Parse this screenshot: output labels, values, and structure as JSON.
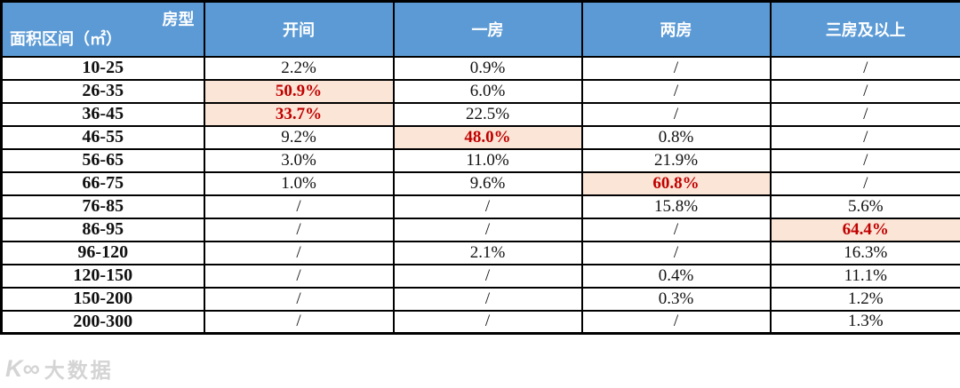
{
  "colors": {
    "header_bg": "#5b9ad5",
    "header_text": "#ffffff",
    "highlight_bg": "#fbe5d6",
    "highlight_text": "#c00000",
    "border": "#000000"
  },
  "table": {
    "corner": {
      "top_right": "房型",
      "bottom_left": "面积区间（㎡）"
    },
    "columns": [
      "开间",
      "一房",
      "两房",
      "三房及以上"
    ],
    "rows": [
      {
        "label": "10-25",
        "values": [
          "2.2%",
          "0.9%",
          "/",
          "/"
        ],
        "highlight": null
      },
      {
        "label": "26-35",
        "values": [
          "50.9%",
          "6.0%",
          "/",
          "/"
        ],
        "highlight": 0
      },
      {
        "label": "36-45",
        "values": [
          "33.7%",
          "22.5%",
          "/",
          "/"
        ],
        "highlight": 0
      },
      {
        "label": "46-55",
        "values": [
          "9.2%",
          "48.0%",
          "0.8%",
          "/"
        ],
        "highlight": 1
      },
      {
        "label": "56-65",
        "values": [
          "3.0%",
          "11.0%",
          "21.9%",
          "/"
        ],
        "highlight": null
      },
      {
        "label": "66-75",
        "values": [
          "1.0%",
          "9.6%",
          "60.8%",
          "/"
        ],
        "highlight": 2
      },
      {
        "label": "76-85",
        "values": [
          "/",
          "/",
          "15.8%",
          "5.6%"
        ],
        "highlight": null
      },
      {
        "label": "86-95",
        "values": [
          "/",
          "/",
          "/",
          "64.4%"
        ],
        "highlight": 3
      },
      {
        "label": "96-120",
        "values": [
          "/",
          "2.1%",
          "/",
          "16.3%"
        ],
        "highlight": null
      },
      {
        "label": "120-150",
        "values": [
          "/",
          "/",
          "0.4%",
          "11.1%"
        ],
        "highlight": null
      },
      {
        "label": "150-200",
        "values": [
          "/",
          "/",
          "0.3%",
          "1.2%"
        ],
        "highlight": null
      },
      {
        "label": "200-300",
        "values": [
          "/",
          "/",
          "/",
          "1.3%"
        ],
        "highlight": null
      }
    ]
  },
  "watermark": {
    "logo": "K∞",
    "text": "大数据"
  },
  "chart_data": {
    "type": "table",
    "title": "",
    "corner_header": {
      "top_right": "房型",
      "bottom_left": "面积区间（㎡）"
    },
    "columns": [
      "开间",
      "一房",
      "两房",
      "三房及以上"
    ],
    "row_labels": [
      "10-25",
      "26-35",
      "36-45",
      "46-55",
      "56-65",
      "66-75",
      "76-85",
      "86-95",
      "96-120",
      "120-150",
      "150-200",
      "200-300"
    ],
    "values_percent": [
      [
        2.2,
        0.9,
        null,
        null
      ],
      [
        50.9,
        6.0,
        null,
        null
      ],
      [
        33.7,
        22.5,
        null,
        null
      ],
      [
        9.2,
        48.0,
        0.8,
        null
      ],
      [
        3.0,
        11.0,
        21.9,
        null
      ],
      [
        1.0,
        9.6,
        60.8,
        null
      ],
      [
        null,
        null,
        15.8,
        5.6
      ],
      [
        null,
        null,
        null,
        64.4
      ],
      [
        null,
        2.1,
        null,
        16.3
      ],
      [
        null,
        null,
        0.4,
        11.1
      ],
      [
        null,
        null,
        0.3,
        1.2
      ],
      [
        null,
        null,
        null,
        1.3
      ]
    ],
    "null_display": "/",
    "highlighted_cells": [
      {
        "row": "26-35",
        "column": "开间",
        "value": 50.9
      },
      {
        "row": "36-45",
        "column": "开间",
        "value": 33.7
      },
      {
        "row": "46-55",
        "column": "一房",
        "value": 48.0
      },
      {
        "row": "66-75",
        "column": "两房",
        "value": 60.8
      },
      {
        "row": "86-95",
        "column": "三房及以上",
        "value": 64.4
      }
    ],
    "layout_hints": {
      "header_bg": "#5b9ad5",
      "highlight_bg": "#fbe5d6",
      "highlight_text": "#c00000",
      "grid": true
    }
  }
}
